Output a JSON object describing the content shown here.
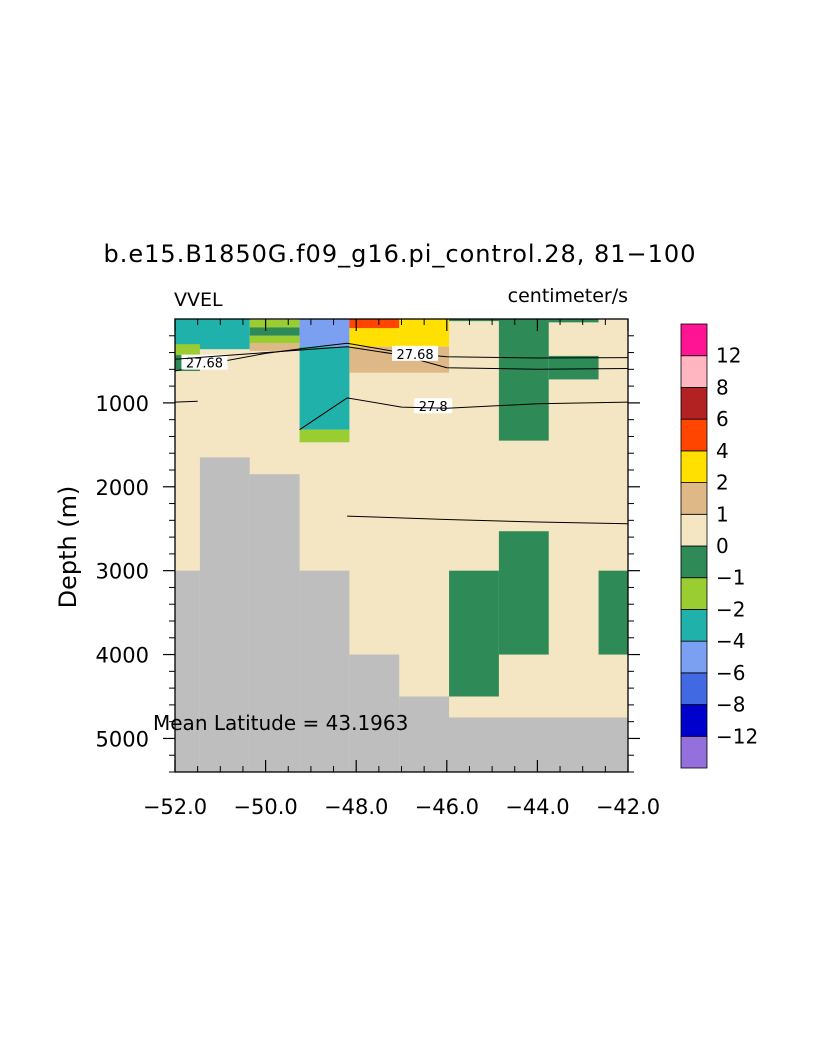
{
  "chart_data": {
    "type": "heatmap",
    "title": "b.e15.B1850G.f09_g16.pi_control.28, 81−100",
    "left_string": "VVEL",
    "right_string": "centimeter/s",
    "ylabel": "Depth (m)",
    "xlabel": "",
    "annotation": "Mean Latitude = 43.1963",
    "xlim": [
      -52,
      -42
    ],
    "ylim": [
      5400,
      0
    ],
    "y_reversed": true,
    "x_ticks": [
      -52,
      -50,
      -48,
      -46,
      -44,
      -42
    ],
    "x_tick_labels": [
      "−52.0",
      "−50.0",
      "−48.0",
      "−46.0",
      "−44.0",
      "−42.0"
    ],
    "y_ticks": [
      1000,
      2000,
      3000,
      4000,
      5000
    ],
    "y_tick_labels": [
      "1000",
      "2000",
      "3000",
      "4000",
      "5000"
    ],
    "background_value_bin": "0 to 1",
    "land_color": "#bebebe",
    "colorbar": {
      "labels": [
        "12",
        "8",
        "6",
        "4",
        "2",
        "1",
        "0",
        "−1",
        "−2",
        "−4",
        "−6",
        "−8",
        "−12"
      ],
      "colors": [
        "#9370db",
        "#0000cd",
        "#4169e1",
        "#7b9ff1",
        "#20b2aa",
        "#9acd32",
        "#2e8b57",
        "#f5e6c3",
        "#deb887",
        "#ffe000",
        "#ff4500",
        "#b22222",
        "#ffb6c1",
        "#ff1493"
      ]
    },
    "cells": [
      {
        "x": [
          -52.0,
          -50.35
        ],
        "depth": [
          5,
          360
        ],
        "color": "#20b2aa"
      },
      {
        "x": [
          -52.0,
          -51.45
        ],
        "depth": [
          300,
          430
        ],
        "color": "#9acd32"
      },
      {
        "x": [
          -52.0,
          -51.45
        ],
        "depth": [
          430,
          620
        ],
        "color": "#2e8b57"
      },
      {
        "x": [
          -50.35,
          -49.25
        ],
        "depth": [
          10,
          100
        ],
        "color": "#9acd32"
      },
      {
        "x": [
          -50.35,
          -49.25
        ],
        "depth": [
          100,
          200
        ],
        "color": "#2e8b57"
      },
      {
        "x": [
          -50.35,
          -49.25
        ],
        "depth": [
          200,
          290
        ],
        "color": "#9acd32"
      },
      {
        "x": [
          -50.35,
          -49.25
        ],
        "depth": [
          290,
          380
        ],
        "color": "#deb887"
      },
      {
        "x": [
          -49.25,
          -48.15
        ],
        "depth": [
          5,
          330
        ],
        "color": "#7b9ff1"
      },
      {
        "x": [
          -49.25,
          -48.15
        ],
        "depth": [
          330,
          1320
        ],
        "color": "#20b2aa"
      },
      {
        "x": [
          -49.25,
          -48.15
        ],
        "depth": [
          1320,
          1470
        ],
        "color": "#9acd32"
      },
      {
        "x": [
          -48.15,
          -47.05
        ],
        "depth": [
          5,
          110
        ],
        "color": "#ff4500"
      },
      {
        "x": [
          -47.05,
          -45.95
        ],
        "depth": [
          5,
          330
        ],
        "color": "#ffe000"
      },
      {
        "x": [
          -48.15,
          -47.05
        ],
        "depth": [
          110,
          330
        ],
        "color": "#ffe000"
      },
      {
        "x": [
          -48.15,
          -45.95
        ],
        "depth": [
          330,
          640
        ],
        "color": "#deb887"
      },
      {
        "x": [
          -45.95,
          -43.75
        ],
        "depth": [
          5,
          25
        ],
        "color": "#2e8b57"
      },
      {
        "x": [
          -43.75,
          -42.65
        ],
        "depth": [
          5,
          40
        ],
        "color": "#2e8b57"
      },
      {
        "x": [
          -44.85,
          -43.75
        ],
        "depth": [
          5,
          1450
        ],
        "color": "#2e8b57"
      },
      {
        "x": [
          -43.75,
          -42.65
        ],
        "depth": [
          440,
          720
        ],
        "color": "#2e8b57"
      },
      {
        "x": [
          -44.85,
          -43.75
        ],
        "depth": [
          2530,
          4000
        ],
        "color": "#2e8b57"
      },
      {
        "x": [
          -45.95,
          -44.85
        ],
        "depth": [
          3000,
          4500
        ],
        "color": "#2e8b57"
      },
      {
        "x": [
          -42.65,
          -42.0
        ],
        "depth": [
          3000,
          4000
        ],
        "color": "#2e8b57"
      }
    ],
    "land": [
      {
        "x": [
          -52.0,
          -51.45
        ],
        "depth": [
          3000,
          5400
        ]
      },
      {
        "x": [
          -51.45,
          -50.35
        ],
        "depth": [
          1650,
          5400
        ]
      },
      {
        "x": [
          -50.35,
          -49.25
        ],
        "depth": [
          1850,
          5400
        ]
      },
      {
        "x": [
          -49.25,
          -48.15
        ],
        "depth": [
          3000,
          5400
        ]
      },
      {
        "x": [
          -48.15,
          -47.05
        ],
        "depth": [
          4000,
          5400
        ]
      },
      {
        "x": [
          -47.05,
          -45.95
        ],
        "depth": [
          4500,
          5400
        ]
      },
      {
        "x": [
          -45.95,
          -42.0
        ],
        "depth": [
          4750,
          5400
        ]
      }
    ],
    "contours": [
      {
        "label": "27.68",
        "label_at": [
          -51.35,
          520
        ],
        "points": [
          [
            -52.0,
            620
          ],
          [
            -51.0,
            510
          ],
          [
            -50.0,
            410
          ],
          [
            -49.0,
            340
          ],
          [
            -48.2,
            290
          ],
          [
            -47.0,
            400
          ],
          [
            -46.0,
            450
          ],
          [
            -44.0,
            465
          ],
          [
            -42.0,
            460
          ]
        ]
      },
      {
        "label": "27.68",
        "label_at": [
          -46.7,
          415
        ],
        "points": [
          [
            -52.0,
            480
          ],
          [
            -51.0,
            440
          ],
          [
            -50.0,
            400
          ],
          [
            -49.0,
            360
          ],
          [
            -48.2,
            330
          ],
          [
            -47.0,
            430
          ],
          [
            -46.0,
            580
          ],
          [
            -44.0,
            600
          ],
          [
            -42.0,
            590
          ]
        ]
      },
      {
        "label": "27.8",
        "label_at": [
          -46.3,
          1040
        ],
        "points": [
          [
            -52.0,
            990
          ],
          [
            -51.5,
            980
          ]
        ]
      },
      {
        "label": "",
        "label_at": null,
        "points": [
          [
            -49.25,
            1320
          ],
          [
            -48.2,
            940
          ],
          [
            -47.0,
            1050
          ],
          [
            -46.0,
            1065
          ],
          [
            -44.0,
            1010
          ],
          [
            -42.0,
            990
          ]
        ]
      },
      {
        "label": "",
        "label_at": null,
        "points": [
          [
            -48.2,
            2350
          ],
          [
            -46.0,
            2390
          ],
          [
            -44.0,
            2420
          ],
          [
            -42.0,
            2440
          ]
        ]
      }
    ]
  }
}
